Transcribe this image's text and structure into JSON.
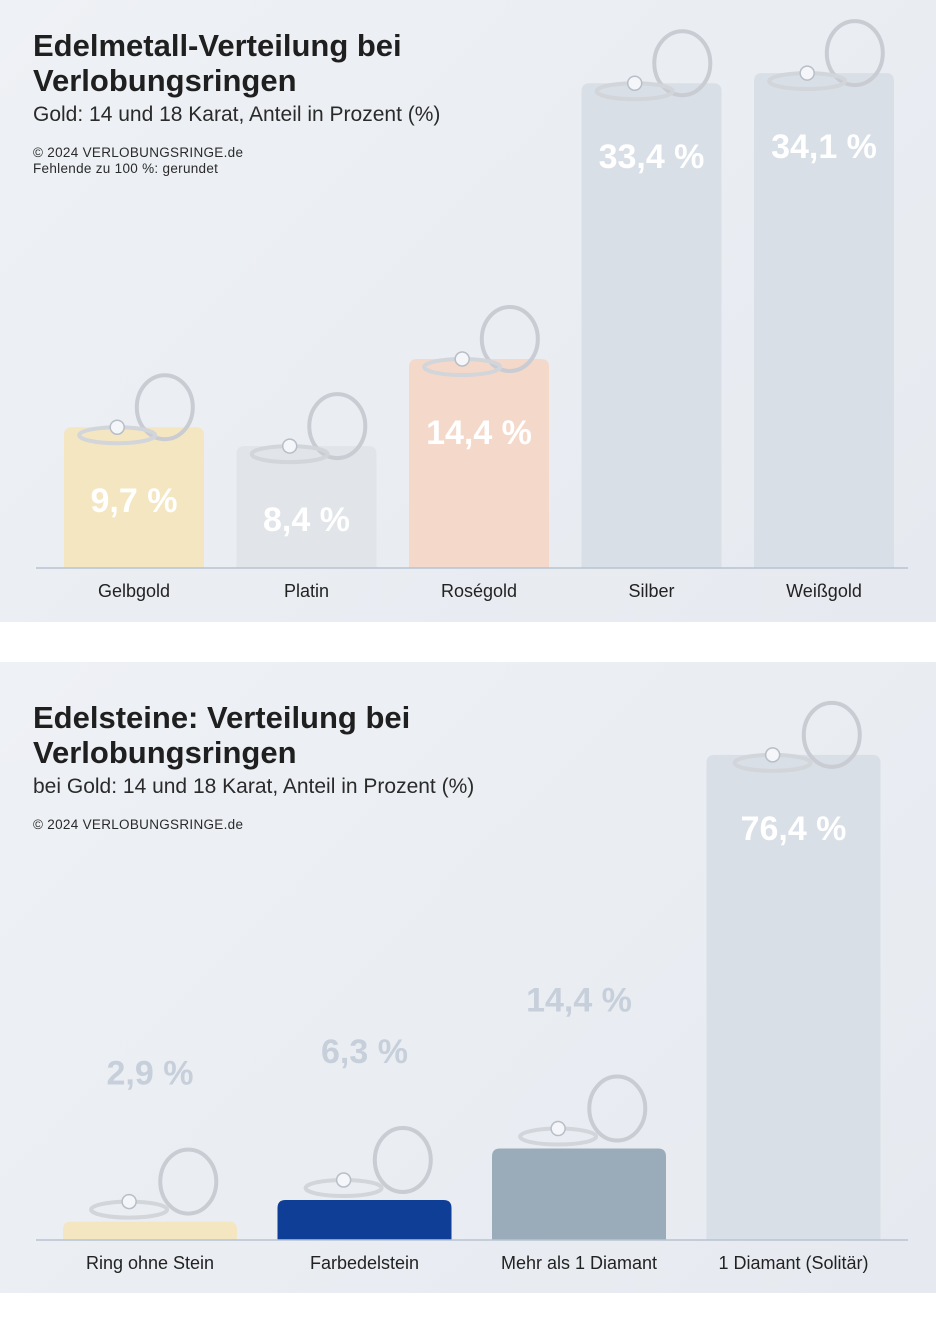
{
  "chart_data": [
    {
      "type": "bar",
      "title": "Edelmetall-Verteilung bei Verlobungsringen",
      "subtitle": "Gold: 14 und 18 Karat, Anteil in Prozent (%)",
      "source": "© 2024 VERLOBUNGSRINGE.de",
      "note": "Fehlende zu 100 %: gerundet",
      "categories": [
        "Gelbgold",
        "Platin",
        "Roségold",
        "Silber",
        "Weißgold"
      ],
      "values": [
        9.7,
        8.4,
        14.4,
        33.4,
        34.1
      ],
      "value_labels": [
        "9,7 %",
        "8,4 %",
        "14,4 %",
        "33,4 %",
        "34,1 %"
      ],
      "colors": [
        "#f5e6c2",
        "#e1e4e8",
        "#f4d9ca",
        "#d9dfe6",
        "#d9dfe6"
      ],
      "ylim": [
        0,
        35
      ]
    },
    {
      "type": "bar",
      "title": "Edelsteine: Verteilung bei Verlobungsringen",
      "subtitle": "bei Gold: 14 und 18 Karat, Anteil in Prozent (%)",
      "source": "© 2024 VERLOBUNGSRINGE.de",
      "categories": [
        "Ring ohne Stein",
        "Farbedelstein",
        "Mehr als 1 Diamant",
        "1 Diamant (Solitär)"
      ],
      "values": [
        2.9,
        6.3,
        14.4,
        76.4
      ],
      "value_labels": [
        "2,9 %",
        "6,3 %",
        "14,4 %",
        "76,4 %"
      ],
      "colors": [
        "#f5e6c2",
        "#0e3e96",
        "#9aabb9",
        "#d9dfe6"
      ],
      "ylim": [
        0,
        80
      ]
    }
  ]
}
